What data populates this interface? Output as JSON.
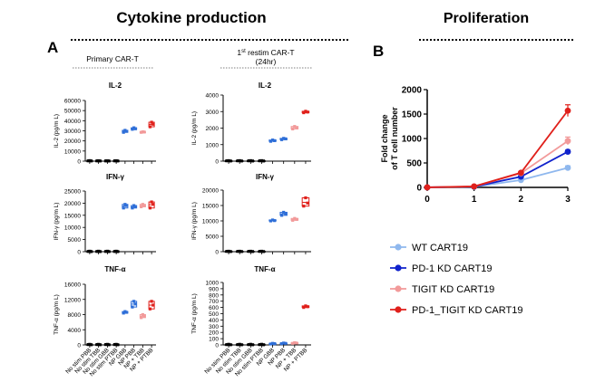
{
  "header": {
    "left_title": "Cytokine production",
    "right_title": "Proliferation",
    "panel_a": "A",
    "panel_b": "B",
    "col1_title": "Primary CAR-T",
    "col2_title_main": "1",
    "col2_title_sup": "st",
    "col2_title_rest": " restim CAR-T",
    "col2_title_sub": "(24hr)"
  },
  "colors": {
    "black": "#000000",
    "blue": "#2f6fd8",
    "lightblue": "#8fb8ee",
    "pink": "#f29a9a",
    "red": "#e0201b",
    "darkblue": "#1022cc"
  },
  "groups": [
    "No stim PBB",
    "No stim TBB",
    "No stim GBB",
    "No stim PTBB",
    "NP GBB",
    "NP PBB",
    "NP + TBB",
    "NP + PTBB"
  ],
  "chart_data": [
    {
      "type": "scatter",
      "title": "IL-2",
      "ylabel": "IL-2 (pg/m L)",
      "ylim": [
        0,
        60000
      ],
      "yticks": [
        0,
        10000,
        20000,
        30000,
        40000,
        50000,
        60000
      ],
      "categories": [
        "No stim PBB",
        "No stim TBB",
        "No stim GBB",
        "No stim PTBB",
        "NP GBB",
        "NP PBB",
        "NP + TBB",
        "NP + PTBB"
      ],
      "values": [
        [
          300,
          500,
          200
        ],
        [
          300,
          400,
          200
        ],
        [
          300,
          300,
          200
        ],
        [
          300,
          400,
          200
        ],
        [
          28500,
          30500,
          29500
        ],
        [
          31500,
          33000,
          32000
        ],
        [
          28500,
          29000,
          28800
        ],
        [
          34000,
          38500,
          36500
        ]
      ]
    },
    {
      "type": "scatter",
      "title": "IL-2",
      "ylabel": "IL-2 (pg/m L)",
      "ylim": [
        0,
        4000
      ],
      "yticks": [
        0,
        1000,
        2000,
        3000,
        4000
      ],
      "categories": [
        "No stim PBB",
        "No stim TBB",
        "No stim GBB",
        "No stim PTBB",
        "NP GBB",
        "NP PBB",
        "NP + TBB",
        "NP + PTBB"
      ],
      "values": [
        [
          20,
          30,
          10
        ],
        [
          20,
          30,
          10
        ],
        [
          20,
          30,
          10
        ],
        [
          20,
          30,
          10
        ],
        [
          1200,
          1280,
          1240
        ],
        [
          1300,
          1380,
          1350
        ],
        [
          1950,
          2100,
          2020
        ],
        [
          2930,
          3020,
          2970
        ]
      ]
    },
    {
      "type": "scatter",
      "title": "IFN-γ",
      "ylabel": "IFN-γ (pg/m L)",
      "ylim": [
        0,
        25000
      ],
      "yticks": [
        0,
        5000,
        10000,
        15000,
        20000,
        25000
      ],
      "categories": [
        "No stim PBB",
        "No stim TBB",
        "No stim GBB",
        "No stim PTBB",
        "NP GBB",
        "NP PBB",
        "NP + TBB",
        "NP + PTBB"
      ],
      "values": [
        [
          100,
          200,
          50
        ],
        [
          100,
          200,
          50
        ],
        [
          100,
          200,
          50
        ],
        [
          100,
          200,
          50
        ],
        [
          18000,
          19500,
          19000
        ],
        [
          18000,
          19000,
          18500
        ],
        [
          18500,
          19500,
          19000
        ],
        [
          18000,
          20500,
          19500
        ]
      ]
    },
    {
      "type": "scatter",
      "title": "IFN-γ",
      "ylabel": "IFN-γ (pg/m L)",
      "ylim": [
        0,
        20000
      ],
      "yticks": [
        0,
        5000,
        10000,
        15000,
        20000
      ],
      "categories": [
        "No stim PBB",
        "No stim TBB",
        "No stim GBB",
        "No stim PTBB",
        "NP GBB",
        "NP PBB",
        "NP + TBB",
        "NP + PTBB"
      ],
      "values": [
        [
          100,
          150,
          50
        ],
        [
          100,
          150,
          50
        ],
        [
          100,
          150,
          50
        ],
        [
          100,
          150,
          50
        ],
        [
          10000,
          10300,
          10100
        ],
        [
          11800,
          12800,
          12300
        ],
        [
          10200,
          10800,
          10500
        ],
        [
          14800,
          17500,
          15800
        ]
      ]
    },
    {
      "type": "scatter",
      "title": "TNF-α",
      "ylabel": "TNF-α (pg/m L)",
      "ylim": [
        0,
        16000
      ],
      "yticks": [
        0,
        4000,
        8000,
        12000,
        16000
      ],
      "categories": [
        "No stim PBB",
        "No stim TBB",
        "No stim GBB",
        "No stim PTBB",
        "NP GBB",
        "NP PBB",
        "NP + TBB",
        "NP + PTBB"
      ],
      "values": [
        [
          100,
          150,
          50
        ],
        [
          100,
          150,
          50
        ],
        [
          100,
          150,
          50
        ],
        [
          100,
          150,
          50
        ],
        [
          8400,
          8800,
          8600
        ],
        [
          10000,
          11500,
          10800
        ],
        [
          7200,
          8000,
          7600
        ],
        [
          9500,
          11500,
          10500
        ]
      ]
    },
    {
      "type": "scatter",
      "title": "TNF-α",
      "ylabel": "TNF-α (pg/m L)",
      "ylim": [
        0,
        1000
      ],
      "yticks": [
        0,
        100,
        200,
        300,
        400,
        500,
        600,
        700,
        800,
        900,
        1000
      ],
      "categories": [
        "No stim PBB",
        "No stim TBB",
        "No stim GBB",
        "No stim PTBB",
        "NP GBB",
        "NP PBB",
        "NP + TBB",
        "NP + PTBB"
      ],
      "values": [
        [
          5,
          10,
          3
        ],
        [
          5,
          10,
          3
        ],
        [
          5,
          10,
          3
        ],
        [
          5,
          10,
          3
        ],
        [
          15,
          25,
          20
        ],
        [
          20,
          30,
          25
        ],
        [
          25,
          35,
          30
        ],
        [
          600,
          625,
          612
        ]
      ]
    },
    {
      "type": "line",
      "ylabel": "Fold change of T cell number",
      "x": [
        0,
        1,
        2,
        3
      ],
      "xlim": [
        0,
        3
      ],
      "ylim": [
        0,
        2000
      ],
      "yticks": [
        0,
        500,
        1000,
        1500,
        2000
      ],
      "series": [
        {
          "name": "WT CART19",
          "values": [
            1,
            12,
            150,
            400
          ],
          "err": [
            0,
            3,
            15,
            40
          ],
          "color": "#8fb8ee"
        },
        {
          "name": "PD-1 KD CART19",
          "values": [
            1,
            15,
            220,
            730
          ],
          "err": [
            0,
            3,
            15,
            30
          ],
          "color": "#1022cc"
        },
        {
          "name": "TIGIT KD CART19",
          "values": [
            1,
            18,
            290,
            950
          ],
          "err": [
            0,
            3,
            20,
            80
          ],
          "color": "#f29a9a"
        },
        {
          "name": "PD-1_TIGIT KD CART19",
          "values": [
            1,
            20,
            300,
            1570
          ],
          "err": [
            0,
            3,
            20,
            120
          ],
          "color": "#e0201b"
        }
      ]
    }
  ]
}
